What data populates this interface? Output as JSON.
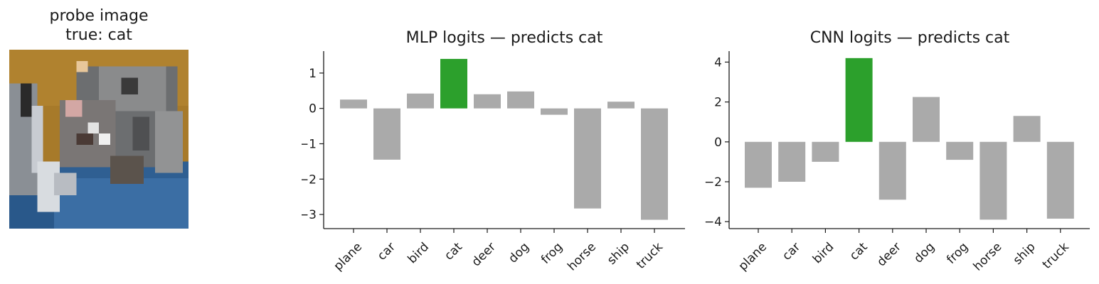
{
  "probe": {
    "title_line1": "probe image",
    "title_line2": "true: cat",
    "image_description_icon": "cifar-cat-pixel-image"
  },
  "chart_data": [
    {
      "type": "bar",
      "title": "MLP logits — predicts cat",
      "categories": [
        "plane",
        "car",
        "bird",
        "cat",
        "deer",
        "dog",
        "frog",
        "horse",
        "ship",
        "truck"
      ],
      "values": [
        0.25,
        -1.45,
        0.42,
        1.4,
        0.4,
        0.48,
        -0.18,
        -2.83,
        0.19,
        -3.15
      ],
      "ylim": [
        -3.4,
        1.62
      ],
      "yticks": [
        1,
        0,
        -1,
        -2,
        -3
      ],
      "ytick_labels": [
        "1",
        "0",
        "−1",
        "−2",
        "−3"
      ],
      "highlight_index": 3,
      "colors": {
        "default": "#aaaaaa",
        "highlight": "#2ca02c"
      },
      "xlabel": "",
      "ylabel": "",
      "grid": false
    },
    {
      "type": "bar",
      "title": "CNN logits — predicts cat",
      "categories": [
        "plane",
        "car",
        "bird",
        "cat",
        "deer",
        "dog",
        "frog",
        "horse",
        "ship",
        "truck"
      ],
      "values": [
        -2.3,
        -2.0,
        -1.0,
        4.2,
        -2.9,
        2.25,
        -0.9,
        -3.9,
        1.3,
        -3.85
      ],
      "ylim": [
        -4.35,
        4.55
      ],
      "yticks": [
        4,
        2,
        0,
        -2,
        -4
      ],
      "ytick_labels": [
        "4",
        "2",
        "0",
        "−2",
        "−4"
      ],
      "highlight_index": 3,
      "colors": {
        "default": "#aaaaaa",
        "highlight": "#2ca02c"
      },
      "xlabel": "",
      "ylabel": "",
      "grid": false
    }
  ]
}
